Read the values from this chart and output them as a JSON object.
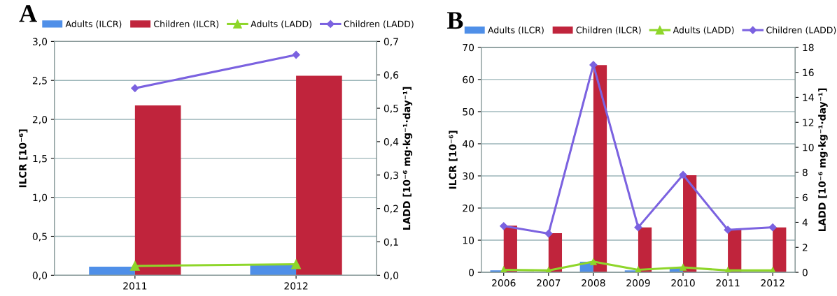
{
  "chart_data": [
    {
      "type": "bar",
      "title": "A",
      "categories": [
        "2011",
        "2012"
      ],
      "ylabel": "ILCR [10⁻⁶]",
      "y2label": "LADD [10⁻⁶ mg·kg⁻¹·day⁻¹]",
      "ylim": [
        0,
        3
      ],
      "yticks": [
        {
          "value": 0,
          "label": "0,0"
        },
        {
          "value": 0.5,
          "label": "0,5"
        },
        {
          "value": 1,
          "label": "1,0"
        },
        {
          "value": 1.5,
          "label": "1,5"
        },
        {
          "value": 2,
          "label": "2,0"
        },
        {
          "value": 2.5,
          "label": "2,5"
        },
        {
          "value": 3,
          "label": "3,0"
        }
      ],
      "y2lim": [
        0,
        0.7
      ],
      "y2ticks": [
        {
          "value": 0,
          "label": "0,0"
        },
        {
          "value": 0.1,
          "label": "0,1"
        },
        {
          "value": 0.2,
          "label": "0,2"
        },
        {
          "value": 0.3,
          "label": "0,3"
        },
        {
          "value": 0.4,
          "label": "0,4"
        },
        {
          "value": 0.5,
          "label": "0,5"
        },
        {
          "value": 0.6,
          "label": "0,6"
        },
        {
          "value": 0.7,
          "label": "0,7"
        }
      ],
      "grid": "y",
      "legend": "top",
      "series": [
        {
          "name": "Adults (ILCR)",
          "color": "#4f8fe8",
          "values": [
            0.11,
            0.13
          ]
        },
        {
          "name": "Children (ILCR)",
          "color": "#c0243c",
          "values": [
            2.18,
            2.56
          ]
        },
        {
          "name": "Adults (LADD)",
          "type": "line",
          "axis": "y2",
          "marker": "triangle",
          "color": "#8ed62a",
          "values": [
            0.028,
            0.033
          ]
        },
        {
          "name": "Children (LADD)",
          "type": "line",
          "axis": "y2",
          "marker": "diamond",
          "color": "#7b62e0",
          "values": [
            0.56,
            0.66
          ]
        }
      ]
    },
    {
      "type": "bar",
      "title": "B",
      "categories": [
        "2006",
        "2007",
        "2008",
        "2009",
        "2010",
        "2011",
        "2012"
      ],
      "ylabel": "ILCR [10⁻⁶]",
      "y2label": "LADD [10⁻⁶ mg·kg⁻¹·day⁻¹]",
      "ylim": [
        0,
        70
      ],
      "yticks": [
        0,
        10,
        20,
        30,
        40,
        50,
        60,
        70
      ],
      "y2lim": [
        0,
        18
      ],
      "y2ticks": [
        0,
        2,
        4,
        6,
        8,
        10,
        12,
        14,
        16,
        18
      ],
      "grid": "y",
      "legend": "top",
      "series": [
        {
          "name": "Adults (ILCR)",
          "color": "#4f8fe8",
          "values": [
            0.6,
            null,
            3.3,
            0.6,
            1.3,
            null,
            null
          ]
        },
        {
          "name": "Children (ILCR)",
          "color": "#c0243c",
          "values": [
            14.5,
            12.2,
            64.5,
            14,
            30.2,
            13.3,
            14
          ]
        },
        {
          "name": "Adults (LADD)",
          "type": "line",
          "axis": "y2",
          "marker": "triangle",
          "color": "#8ed62a",
          "values": [
            0.2,
            0.15,
            0.85,
            0.2,
            0.4,
            0.15,
            0.15
          ]
        },
        {
          "name": "Children (LADD)",
          "type": "line",
          "axis": "y2",
          "marker": "diamond",
          "color": "#7b62e0",
          "values": [
            3.7,
            3.1,
            16.6,
            3.6,
            7.8,
            3.4,
            3.6
          ]
        }
      ]
    }
  ]
}
